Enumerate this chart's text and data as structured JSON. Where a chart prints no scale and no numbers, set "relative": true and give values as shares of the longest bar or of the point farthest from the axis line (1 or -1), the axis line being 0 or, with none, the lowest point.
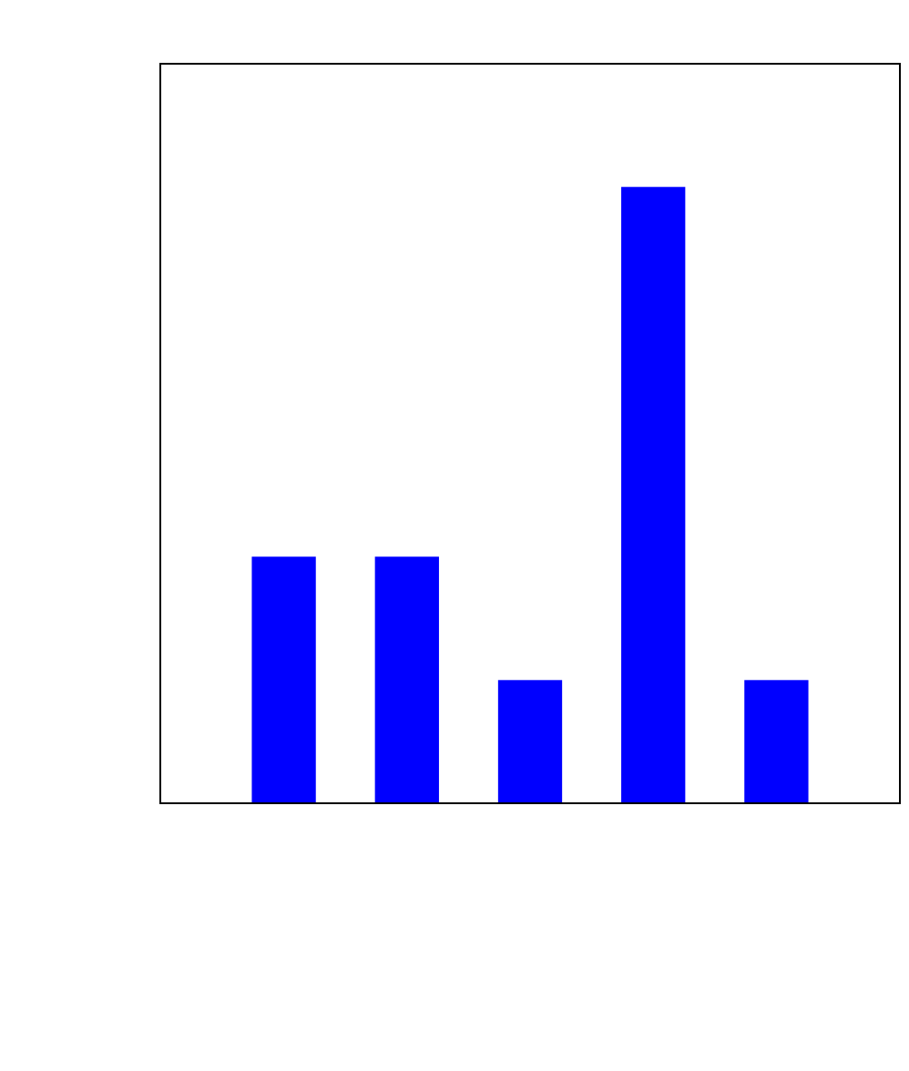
{
  "chart_data": {
    "type": "bar",
    "relative": true,
    "categories": [
      null,
      null,
      null,
      null,
      null
    ],
    "values": [
      0.4,
      0.4,
      0.2,
      1,
      0.2
    ],
    "color": "#0000ff",
    "legend": false
  }
}
